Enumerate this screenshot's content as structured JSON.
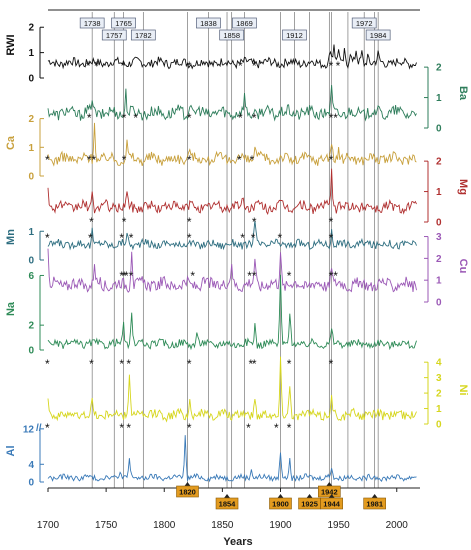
{
  "chart_data": {
    "type": "line",
    "xlabel": "Years",
    "x_ticks": [
      1700,
      1750,
      1800,
      1850,
      1900,
      1950,
      2000
    ],
    "x_range": [
      1700,
      2020
    ],
    "series": [
      {
        "name": "RWI",
        "label": "RWI",
        "color": "#111111",
        "side": "left",
        "ticks": [
          "0",
          "1",
          "2"
        ],
        "ymax": 2.6,
        "base": 0.6,
        "amp": 0.28,
        "spikes": [
          [
            1943,
            0.55
          ],
          [
            1946,
            0.7
          ],
          [
            1950,
            0.6
          ],
          [
            1955,
            0.5
          ],
          [
            1960,
            0.45
          ],
          [
            1965,
            0.45
          ],
          [
            1970,
            0.4
          ],
          [
            1975,
            0.35
          ],
          [
            1984,
            0.3
          ]
        ],
        "marked_years": [
          1738,
          1757,
          1765,
          1782,
          1838,
          1858,
          1869,
          1912,
          1972,
          1984
        ]
      },
      {
        "name": "Ba",
        "label": "Ba",
        "color": "#2e7d5b",
        "side": "right",
        "ticks": [
          "0",
          "1",
          "2"
        ],
        "ymax": 2.3,
        "base": 0.5,
        "amp": 0.32,
        "spikes": [
          [
            1738,
            0.5
          ],
          [
            1767,
            0.7
          ],
          [
            1822,
            0.4
          ],
          [
            1869,
            0.5
          ],
          [
            1944,
            0.7
          ]
        ],
        "stars": [
          1735,
          1742,
          1765,
          1822,
          1866,
          1878,
          1944,
          1950
        ]
      },
      {
        "name": "Ca",
        "label": "Ca",
        "color": "#c8a03c",
        "side": "left",
        "ticks": [
          "0",
          "1",
          "2"
        ],
        "ymax": 2.3,
        "base": 0.6,
        "amp": 0.3,
        "spikes": [
          [
            1740,
            1.3
          ],
          [
            1768,
            0.5
          ],
          [
            1822,
            0.5
          ],
          [
            1878,
            0.5
          ],
          [
            1944,
            0.6
          ],
          [
            1950,
            0.4
          ]
        ],
        "stars": [
          1736,
          1766,
          1776,
          1822,
          1866,
          1878,
          1944,
          1948
        ]
      },
      {
        "name": "Mg",
        "label": "Mg",
        "color": "#b03030",
        "side": "right",
        "ticks": [
          "0",
          "1",
          "2"
        ],
        "ymax": 2.3,
        "base": 0.5,
        "amp": 0.28,
        "spikes": [
          [
            1700,
            0.8
          ],
          [
            1738,
            0.4
          ],
          [
            1768,
            0.4
          ],
          [
            1868,
            0.4
          ],
          [
            1944,
            1.3
          ]
        ],
        "stars": [
          1700,
          1736,
          1740,
          1766,
          1822,
          1865,
          1876,
          1944
        ]
      },
      {
        "name": "Mn",
        "label": "Mn",
        "color": "#2e6e80",
        "side": "left",
        "ticks": [
          "0",
          "1"
        ],
        "ymax": 1.6,
        "base": 0.55,
        "amp": 0.22,
        "spikes": [
          [
            1738,
            0.5
          ],
          [
            1768,
            0.4
          ],
          [
            1878,
            0.9
          ],
          [
            1944,
            0.5
          ]
        ],
        "stars": [
          1738,
          1766,
          1822,
          1878,
          1944
        ]
      },
      {
        "name": "Cu",
        "label": "Cu",
        "color": "#9b59b6",
        "side": "right",
        "ticks": [
          "0",
          "1",
          "2",
          "3"
        ],
        "ymax": 3.3,
        "base": 0.8,
        "amp": 0.45,
        "spikes": [
          [
            1700,
            1.6
          ],
          [
            1740,
            1.0
          ],
          [
            1772,
            1.8
          ],
          [
            1858,
            1.0
          ],
          [
            1878,
            1.2
          ],
          [
            1900,
            1.6
          ],
          [
            1944,
            1.0
          ]
        ],
        "stars": [
          1700,
          1737,
          1764,
          1772,
          1822,
          1868,
          1877,
          1900,
          1944
        ]
      },
      {
        "name": "Na",
        "label": "Na",
        "color": "#2e8b57",
        "side": "left",
        "ticks": [
          "0",
          "2",
          "6"
        ],
        "ymax": 6.6,
        "base": 0.5,
        "amp": 0.5,
        "spikes": [
          [
            1765,
            1.8
          ],
          [
            1772,
            2.4
          ],
          [
            1828,
            1.0
          ],
          [
            1878,
            1.6
          ],
          [
            1900,
            5.6
          ],
          [
            1908,
            2.4
          ],
          [
            1944,
            1.2
          ]
        ],
        "stars": [
          1764,
          1766,
          1768,
          1772,
          1825,
          1874,
          1878,
          1908,
          1944,
          1948
        ]
      },
      {
        "name": "Ni",
        "label": "Ni",
        "color": "#d6d61e",
        "side": "right",
        "ticks": [
          "0",
          "1",
          "2",
          "3",
          "4"
        ],
        "ymax": 4.4,
        "base": 0.6,
        "amp": 0.5,
        "spikes": [
          [
            1700,
            1.2
          ],
          [
            1738,
            0.8
          ],
          [
            1770,
            2.8
          ],
          [
            1822,
            1.2
          ],
          [
            1878,
            1.4
          ],
          [
            1900,
            3.6
          ],
          [
            1908,
            1.8
          ],
          [
            1944,
            1.0
          ]
        ],
        "stars": [
          1700,
          1738,
          1764,
          1770,
          1822,
          1875,
          1878,
          1908,
          1944
        ]
      },
      {
        "name": "Al",
        "label": "Al",
        "color": "#3a7ab8",
        "side": "left",
        "ticks": [
          "0",
          "4",
          "12"
        ],
        "ymax": 14,
        "base": 1.0,
        "amp": 1.0,
        "spikes": [
          [
            1762,
            2.0
          ],
          [
            1770,
            4.0
          ],
          [
            1818,
            10.0
          ],
          [
            1875,
            2.5
          ],
          [
            1900,
            6.0
          ],
          [
            1908,
            4.5
          ],
          [
            1944,
            2.5
          ]
        ],
        "stars": [
          1700,
          1764,
          1770,
          1822,
          1873,
          1897,
          1908
        ]
      }
    ],
    "event_lines": [
      1738,
      1757,
      1765,
      1782,
      1820,
      1838,
      1854,
      1858,
      1869,
      1900,
      1912,
      1925,
      1942,
      1944,
      1958,
      1972,
      1981,
      1984
    ],
    "event_labels": [
      {
        "year": "1820",
        "row": 1
      },
      {
        "year": "1854",
        "row": 2
      },
      {
        "year": "1900",
        "row": 2
      },
      {
        "year": "1925",
        "row": 2
      },
      {
        "year": "1942",
        "row": 1
      },
      {
        "year": "1944",
        "row": 2
      },
      {
        "year": "1981",
        "row": 2
      }
    ],
    "star_symbol": "*",
    "y_break_symbol": "//"
  }
}
